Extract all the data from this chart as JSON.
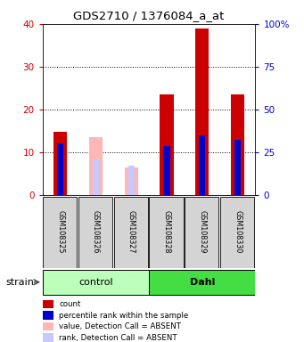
{
  "title": "GDS2710 / 1376084_a_at",
  "samples": [
    "GSM108325",
    "GSM108326",
    "GSM108327",
    "GSM108328",
    "GSM108329",
    "GSM108330"
  ],
  "absent_flags": [
    false,
    true,
    true,
    false,
    false,
    false
  ],
  "red_bars": [
    14.8,
    0,
    0,
    23.5,
    39.0,
    23.5
  ],
  "blue_bars_pct": [
    30.0,
    0,
    0,
    28.5,
    35.0,
    32.0
  ],
  "pink_bars": [
    0,
    13.5,
    6.5,
    0,
    0,
    0
  ],
  "lavender_pct": [
    0,
    21.0,
    17.0,
    0,
    0,
    0
  ],
  "ylim_left": [
    0,
    40
  ],
  "ylim_right": [
    0,
    100
  ],
  "yticks_left": [
    0,
    10,
    20,
    30,
    40
  ],
  "yticks_right": [
    0,
    25,
    50,
    75,
    100
  ],
  "yticklabels_right": [
    "0",
    "25",
    "50",
    "75",
    "100%"
  ],
  "left_tick_color": "#cc0000",
  "right_tick_color": "#0000cc",
  "group_control_color": "#bbffbb",
  "group_dahl_color": "#44dd44",
  "legend_items": [
    {
      "label": "count",
      "color": "#cc0000"
    },
    {
      "label": "percentile rank within the sample",
      "color": "#0000cc"
    },
    {
      "label": "value, Detection Call = ABSENT",
      "color": "#ffb6b6"
    },
    {
      "label": "rank, Detection Call = ABSENT",
      "color": "#c8c8ff"
    }
  ]
}
